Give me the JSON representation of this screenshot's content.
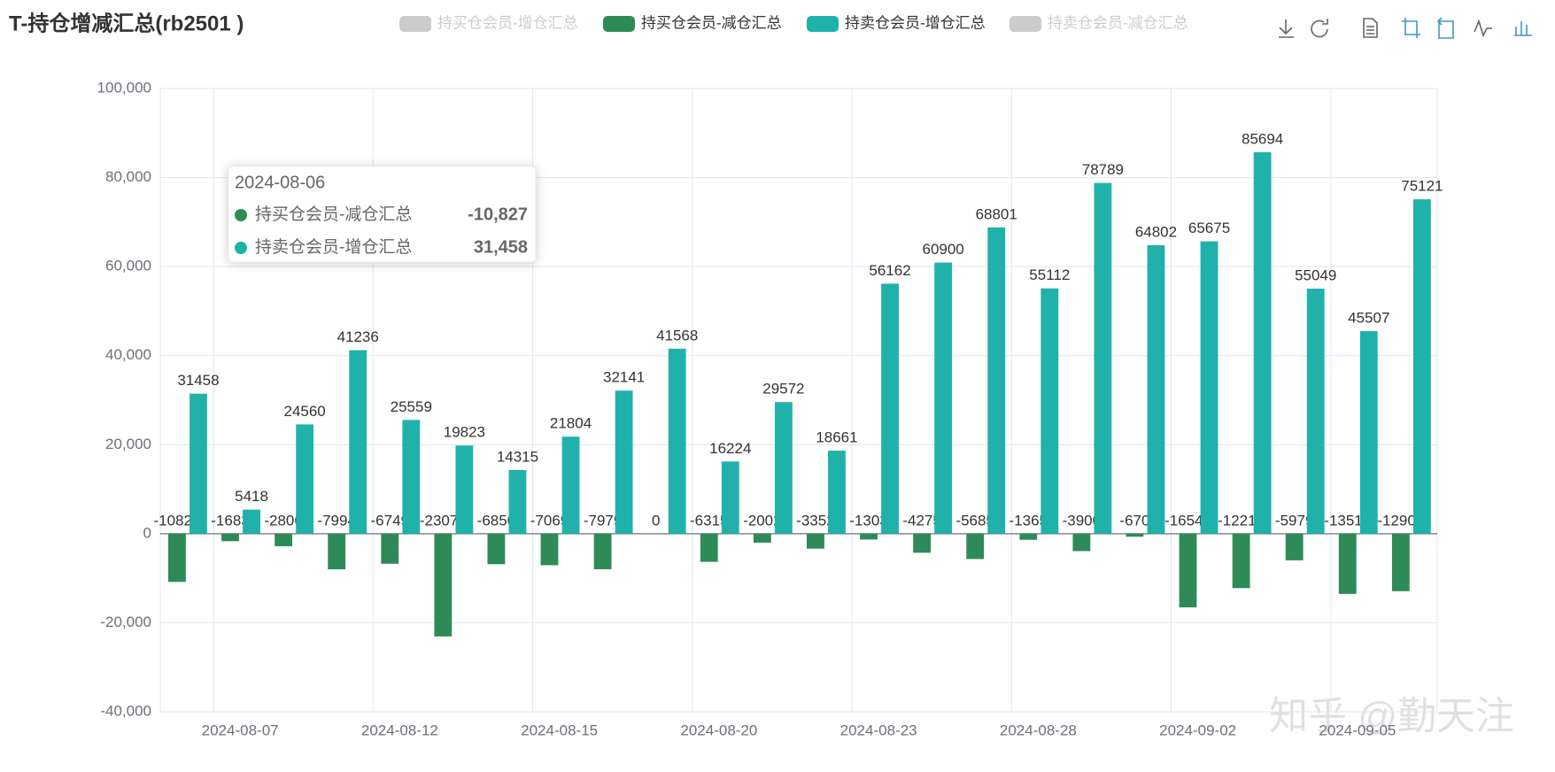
{
  "chart_data": {
    "type": "bar",
    "title": "T-持仓增减汇总(rb2501 )",
    "categories": [
      null,
      "2024-08-07",
      null,
      null,
      "2024-08-12",
      null,
      null,
      "2024-08-15",
      null,
      null,
      "2024-08-20",
      null,
      null,
      "2024-08-23",
      null,
      null,
      "2024-08-28",
      null,
      null,
      "2024-09-02",
      null,
      null,
      "2024-09-05",
      null
    ],
    "series": [
      {
        "name": "持买仓会员-增仓汇总",
        "hidden": true
      },
      {
        "name": "持买仓会员-减仓汇总",
        "color": "#2e8b57",
        "values": [
          -10827,
          -1683,
          -2806,
          -7994,
          -6749,
          -23072,
          -6850,
          -7069,
          -7979,
          0,
          -6315,
          -2002,
          -3352,
          -1303,
          -4275,
          -5685,
          -1365,
          -3900,
          -670,
          -16542,
          -12215,
          -5979,
          -13514,
          -12904
        ]
      },
      {
        "name": "持卖仓会员-增仓汇总",
        "color": "#20b2aa",
        "values": [
          31458,
          5418,
          24560,
          41236,
          25559,
          19823,
          14315,
          21804,
          32141,
          41568,
          16224,
          29572,
          18661,
          56162,
          60900,
          68801,
          55112,
          78789,
          64802,
          65675,
          85694,
          55049,
          45507,
          75121
        ]
      },
      {
        "name": "持卖仓会员-减仓汇总",
        "hidden": true
      }
    ],
    "ylim": [
      -40000,
      100000
    ],
    "yticks": [
      {
        "value": -40000,
        "label": "-40,000"
      },
      {
        "value": -20000,
        "label": "-20,000"
      },
      0,
      {
        "value": 20000,
        "label": "20,000"
      },
      {
        "value": 40000,
        "label": "40,000"
      },
      {
        "value": 60000,
        "label": "60,000"
      },
      {
        "value": 80000,
        "label": "80,000"
      },
      {
        "value": 100000,
        "label": "100,000"
      }
    ],
    "grid": true,
    "tooltip": {
      "title": "2024-08-06",
      "items": [
        {
          "name": "持买仓会员-减仓汇总",
          "value": -10827,
          "label": "-10,827",
          "color": "#2e8b57"
        },
        {
          "name": "持卖仓会员-增仓汇总",
          "value": 31458,
          "label": "31,458",
          "color": "#20b2aa"
        }
      ]
    },
    "watermark": "知乎 @勤天注"
  }
}
